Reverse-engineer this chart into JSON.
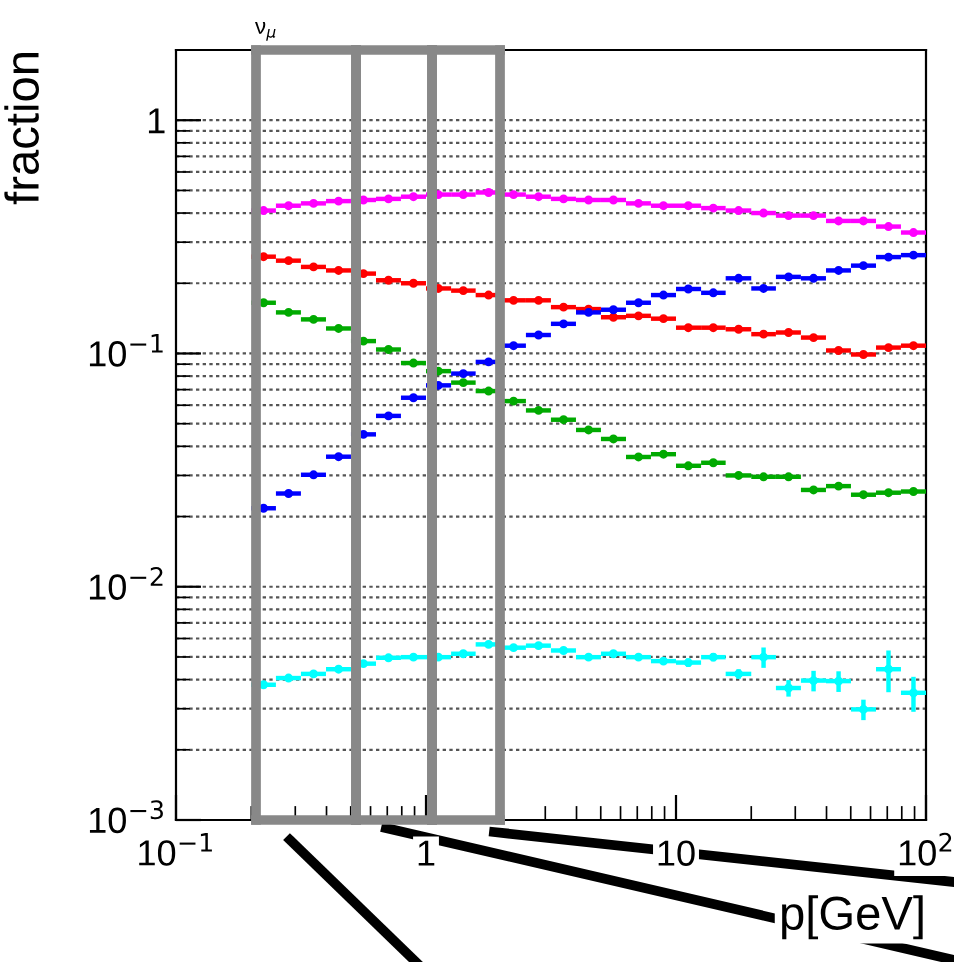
{
  "chart_data": {
    "type": "scatter",
    "title": "ν$_{μ}$",
    "xlabel": "p[GeV]",
    "ylabel": "fraction",
    "log": "xy",
    "grid": "y",
    "marker": "circle",
    "xlim": [
      0.1,
      100
    ],
    "ylim": [
      0.001,
      2
    ],
    "xticks": [
      {
        "value": 0.1,
        "label": "10$^{−1}$"
      },
      1,
      10,
      {
        "value": 100,
        "label": "10$^{2}$"
      }
    ],
    "yticks": [
      {
        "value": 0.001,
        "label": "10$^{−3}$"
      },
      {
        "value": 0.01,
        "label": "10$^{−2}$"
      },
      {
        "value": 0.1,
        "label": "10$^{−1}$"
      },
      1
    ],
    "x": [
      0.224,
      0.282,
      0.355,
      0.447,
      0.562,
      0.708,
      0.891,
      1.12,
      1.41,
      1.78,
      2.24,
      2.82,
      3.55,
      4.47,
      5.62,
      7.08,
      8.91,
      11.2,
      14.1,
      17.8,
      22.4,
      28.2,
      35.5,
      44.7,
      56.2,
      70.8,
      89.1
    ],
    "series": [
      {
        "color": "#ff00ff",
        "xerrors": [
          [
            0.2,
            0.251
          ],
          [
            0.251,
            0.316
          ],
          [
            0.316,
            0.398
          ],
          [
            0.398,
            0.501
          ],
          [
            0.501,
            0.631
          ],
          [
            0.631,
            0.794
          ],
          [
            0.794,
            1
          ],
          [
            1,
            1.26
          ],
          [
            1.26,
            1.58
          ],
          [
            1.58,
            2
          ],
          [
            2,
            2.51
          ],
          [
            2.51,
            3.16
          ],
          [
            3.16,
            3.98
          ],
          [
            3.98,
            5.01
          ],
          [
            5.01,
            6.31
          ],
          [
            6.31,
            7.94
          ],
          [
            7.94,
            10
          ],
          [
            10,
            12.6
          ],
          [
            12.6,
            15.8
          ],
          [
            15.8,
            20
          ],
          [
            20,
            25.1
          ],
          [
            25.1,
            31.6
          ],
          [
            31.6,
            39.8
          ],
          [
            39.8,
            50.1
          ],
          [
            50.1,
            63.1
          ],
          [
            63.1,
            79.4
          ],
          [
            79.4,
            100
          ]
        ],
        "values": [
          0.41,
          0.43,
          0.44,
          0.45,
          0.455,
          0.46,
          0.47,
          0.48,
          0.48,
          0.49,
          0.48,
          0.47,
          0.46,
          0.455,
          0.455,
          0.44,
          0.43,
          0.43,
          0.42,
          0.41,
          0.4,
          0.39,
          0.39,
          0.37,
          0.37,
          0.35,
          0.33
        ]
      },
      {
        "color": "#ff0000",
        "xerrors": [
          [
            0.2,
            0.251
          ],
          [
            0.251,
            0.316
          ],
          [
            0.316,
            0.398
          ],
          [
            0.398,
            0.501
          ],
          [
            0.501,
            0.631
          ],
          [
            0.631,
            0.794
          ],
          [
            0.794,
            1
          ],
          [
            1,
            1.26
          ],
          [
            1.26,
            1.58
          ],
          [
            1.58,
            2
          ],
          [
            2,
            2.51
          ],
          [
            2.51,
            3.16
          ],
          [
            3.16,
            3.98
          ],
          [
            3.98,
            5.01
          ],
          [
            5.01,
            6.31
          ],
          [
            6.31,
            7.94
          ],
          [
            7.94,
            10
          ],
          [
            10,
            12.6
          ],
          [
            12.6,
            15.8
          ],
          [
            15.8,
            20
          ],
          [
            20,
            25.1
          ],
          [
            25.1,
            31.6
          ],
          [
            31.6,
            39.8
          ],
          [
            39.8,
            50.1
          ],
          [
            50.1,
            63.1
          ],
          [
            63.1,
            79.4
          ],
          [
            79.4,
            100
          ]
        ],
        "values": [
          0.26,
          0.25,
          0.235,
          0.227,
          0.22,
          0.206,
          0.2,
          0.19,
          0.186,
          0.178,
          0.169,
          0.169,
          0.158,
          0.155,
          0.143,
          0.145,
          0.141,
          0.129,
          0.129,
          0.127,
          0.121,
          0.123,
          0.117,
          0.103,
          0.099,
          0.106,
          0.108
        ]
      },
      {
        "color": "#0000ff",
        "xerrors": [
          [
            0.2,
            0.251
          ],
          [
            0.251,
            0.316
          ],
          [
            0.316,
            0.398
          ],
          [
            0.398,
            0.501
          ],
          [
            0.501,
            0.631
          ],
          [
            0.631,
            0.794
          ],
          [
            0.794,
            1
          ],
          [
            1,
            1.26
          ],
          [
            1.26,
            1.58
          ],
          [
            1.58,
            2
          ],
          [
            2,
            2.51
          ],
          [
            2.51,
            3.16
          ],
          [
            3.16,
            3.98
          ],
          [
            3.98,
            5.01
          ],
          [
            5.01,
            6.31
          ],
          [
            6.31,
            7.94
          ],
          [
            7.94,
            10
          ],
          [
            10,
            12.6
          ],
          [
            12.6,
            15.8
          ],
          [
            15.8,
            20
          ],
          [
            20,
            25.1
          ],
          [
            25.1,
            31.6
          ],
          [
            31.6,
            39.8
          ],
          [
            39.8,
            50.1
          ],
          [
            50.1,
            63.1
          ],
          [
            63.1,
            79.4
          ],
          [
            79.4,
            100
          ]
        ],
        "values": [
          0.0217,
          0.0251,
          0.0302,
          0.0361,
          0.045,
          0.054,
          0.0646,
          0.073,
          0.082,
          0.092,
          0.108,
          0.12,
          0.134,
          0.15,
          0.154,
          0.165,
          0.178,
          0.189,
          0.182,
          0.21,
          0.19,
          0.213,
          0.21,
          0.227,
          0.238,
          0.259,
          0.264
        ]
      },
      {
        "color": "#00aa00",
        "xerrors": [
          [
            0.2,
            0.251
          ],
          [
            0.251,
            0.316
          ],
          [
            0.316,
            0.398
          ],
          [
            0.398,
            0.501
          ],
          [
            0.501,
            0.631
          ],
          [
            0.631,
            0.794
          ],
          [
            0.794,
            1
          ],
          [
            1,
            1.26
          ],
          [
            1.26,
            1.58
          ],
          [
            1.58,
            2
          ],
          [
            2,
            2.51
          ],
          [
            2.51,
            3.16
          ],
          [
            3.16,
            3.98
          ],
          [
            3.98,
            5.01
          ],
          [
            5.01,
            6.31
          ],
          [
            6.31,
            7.94
          ],
          [
            7.94,
            10
          ],
          [
            10,
            12.6
          ],
          [
            12.6,
            15.8
          ],
          [
            15.8,
            20
          ],
          [
            20,
            25.1
          ],
          [
            25.1,
            31.6
          ],
          [
            31.6,
            39.8
          ],
          [
            39.8,
            50.1
          ],
          [
            50.1,
            63.1
          ],
          [
            63.1,
            79.4
          ],
          [
            79.4,
            100
          ]
        ],
        "values": [
          0.165,
          0.15,
          0.14,
          0.128,
          0.113,
          0.104,
          0.091,
          0.084,
          0.075,
          0.069,
          0.0625,
          0.057,
          0.052,
          0.047,
          0.043,
          0.036,
          0.037,
          0.033,
          0.034,
          0.03,
          0.0296,
          0.0296,
          0.026,
          0.027,
          0.0248,
          0.0253,
          0.0256
        ]
      },
      {
        "color": "#00ffff",
        "xerrors": [
          [
            0.2,
            0.251
          ],
          [
            0.251,
            0.316
          ],
          [
            0.316,
            0.398
          ],
          [
            0.398,
            0.501
          ],
          [
            0.501,
            0.631
          ],
          [
            0.631,
            0.794
          ],
          [
            0.794,
            1
          ],
          [
            1,
            1.26
          ],
          [
            1.26,
            1.58
          ],
          [
            1.58,
            2
          ],
          [
            2,
            2.51
          ],
          [
            2.51,
            3.16
          ],
          [
            3.16,
            3.98
          ],
          [
            3.98,
            5.01
          ],
          [
            5.01,
            6.31
          ],
          [
            6.31,
            7.94
          ],
          [
            7.94,
            10
          ],
          [
            10,
            12.6
          ],
          [
            12.6,
            15.8
          ],
          [
            15.8,
            20
          ],
          [
            20,
            25.1
          ],
          [
            25.1,
            31.6
          ],
          [
            31.6,
            39.8
          ],
          [
            39.8,
            50.1
          ],
          [
            50.1,
            63.1
          ],
          [
            63.1,
            79.4
          ],
          [
            79.4,
            100
          ]
        ],
        "values": [
          0.0038,
          0.00406,
          0.00423,
          0.00443,
          0.00468,
          0.00496,
          0.00499,
          0.00499,
          0.00516,
          0.00566,
          0.00548,
          0.00559,
          0.00533,
          0.00499,
          0.00516,
          0.00499,
          0.0048,
          0.00473,
          0.00499,
          0.00423,
          0.00499,
          0.00368,
          0.00396,
          0.00394,
          0.00298,
          0.00443,
          0.00351
        ],
        "errors": [
          null,
          null,
          null,
          null,
          null,
          null,
          null,
          null,
          null,
          null,
          null,
          null,
          null,
          null,
          null,
          null,
          null,
          0.0002,
          0.0002,
          0.0002,
          0.0005,
          0.0003,
          0.0004,
          0.0004,
          0.0003,
          0.0009,
          0.0006
        ]
      }
    ]
  }
}
